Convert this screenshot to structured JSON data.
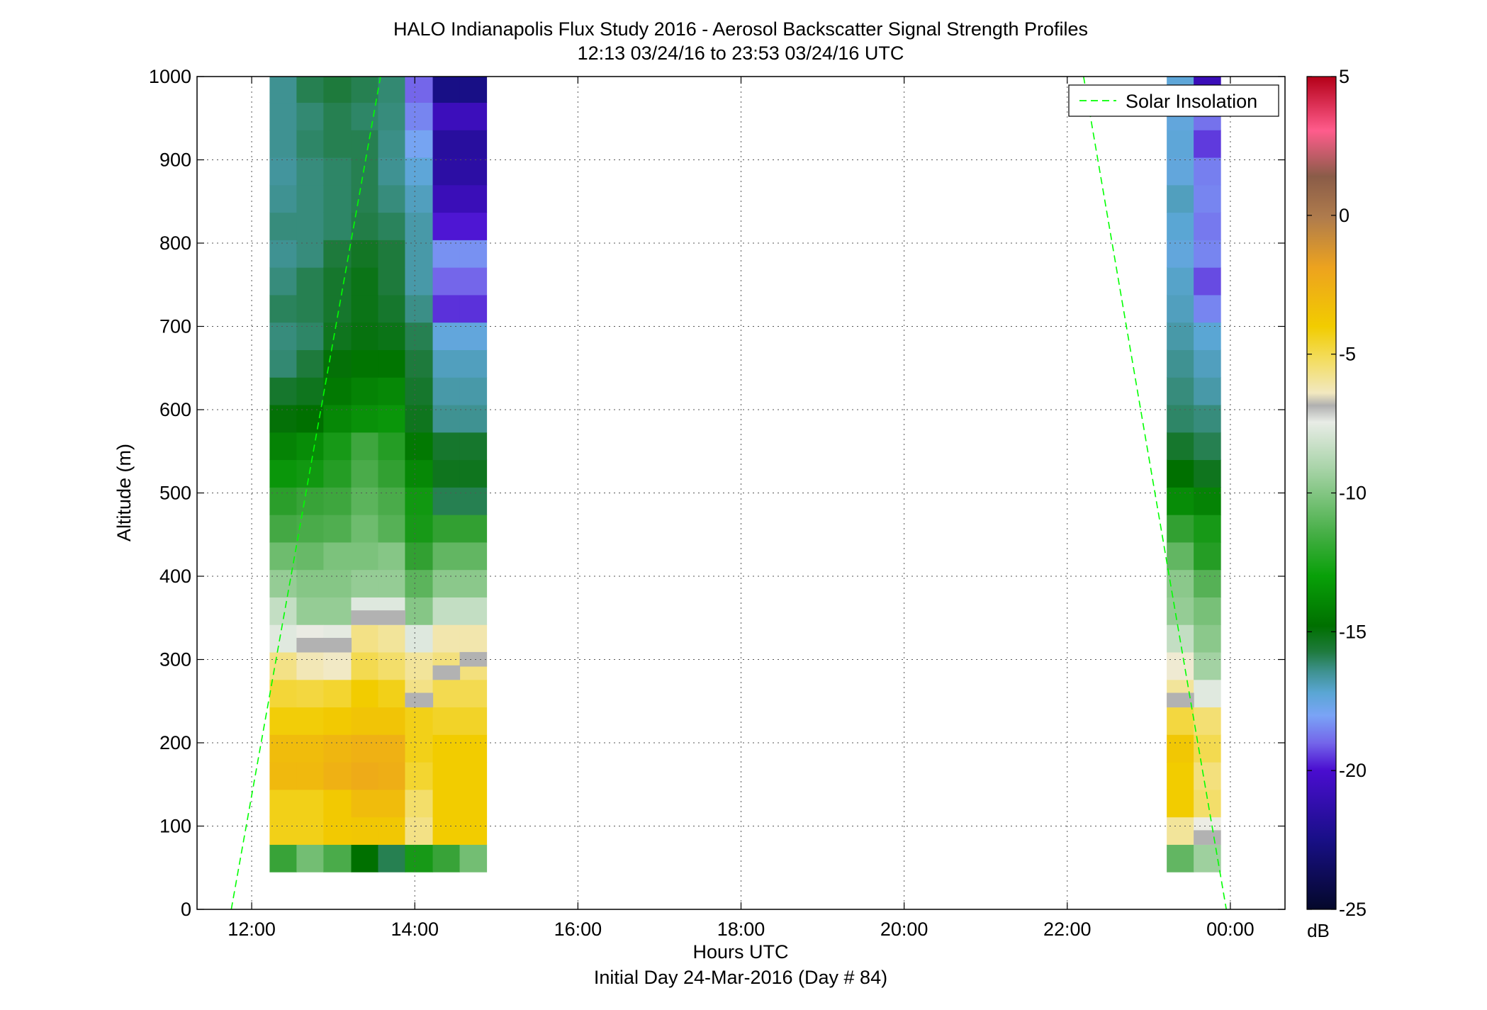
{
  "figure": {
    "title_line1": "HALO Indianapolis Flux Study 2016 - Aerosol Backscatter Signal Strength Profiles",
    "title_line2": "12:13 03/24/16 to 23:53 03/24/16  UTC",
    "xlabel": "Hours UTC",
    "footer": "Initial Day 24-Mar-2016 (Day # 84)",
    "ylabel": "Altitude (m)",
    "legend_label": "Solar Insolation",
    "colorbar_unit": "dB"
  },
  "chart_data": {
    "type": "heatmap",
    "title": "HALO Indianapolis Flux Study 2016 - Aerosol Backscatter Signal Strength Profiles",
    "subtitle": "12:13 03/24/16 to 23:53 03/24/16  UTC",
    "xlabel": "Hours UTC",
    "ylabel": "Altitude (m)",
    "x_unit": "hours UTC (24 = 00:00 next day)",
    "xlim": [
      11.33,
      24.67
    ],
    "ylim": [
      0,
      1000
    ],
    "x_ticks": [
      12,
      14,
      16,
      18,
      20,
      22,
      24
    ],
    "x_tick_labels": [
      "12:00",
      "14:00",
      "16:00",
      "18:00",
      "20:00",
      "22:00",
      "00:00"
    ],
    "y_ticks": [
      0,
      100,
      200,
      300,
      400,
      500,
      600,
      700,
      800,
      900,
      1000
    ],
    "y_tick_labels": [
      "0",
      "100",
      "200",
      "300",
      "400",
      "500",
      "600",
      "700",
      "800",
      "900",
      "1000"
    ],
    "grid": true,
    "colorbar": {
      "unit": "dB",
      "range": [
        -25,
        5
      ],
      "ticks": [
        5,
        0,
        -5,
        -10,
        -15,
        -20,
        -25
      ],
      "tick_labels": [
        "5",
        "0",
        "-5",
        "-10",
        "-15",
        "-20",
        "-25"
      ]
    },
    "altitude_bins_m": [
      45,
      78,
      111,
      144,
      177,
      210,
      243,
      276,
      309,
      342,
      375,
      408,
      441,
      474,
      507,
      540,
      573,
      606,
      639,
      672,
      705,
      738,
      771,
      804,
      837,
      870,
      903,
      936,
      969,
      1002
    ],
    "profiles": [
      {
        "time": "12:13",
        "x_start": 12.22,
        "x_end": 12.55,
        "values_db": [
          -13.5,
          -7.3,
          -7.3,
          -6.3,
          -6.4,
          -7.1,
          -7.7,
          -8.6,
          -10.5,
          -11.0,
          -11.8,
          -12.6,
          -13.3,
          -13.7,
          -14.2,
          -14.6,
          -15.1,
          -15.6,
          -16.3,
          -16.4,
          -16.1,
          -16.4,
          -16.6,
          -16.4,
          -16.6,
          -16.7,
          -16.6,
          -16.6,
          -16.6,
          -16.2
        ]
      },
      {
        "time": "12:33",
        "x_start": 12.55,
        "x_end": 12.88,
        "values_db": [
          -12.5,
          -7.3,
          -7.3,
          -6.3,
          -6.4,
          -7.1,
          -7.8,
          -9.1,
          -10.1,
          -11.8,
          -12.1,
          -12.7,
          -13.2,
          -13.5,
          -14.1,
          -14.4,
          -15.0,
          -15.4,
          -15.8,
          -16.2,
          -16.0,
          -16.0,
          -16.4,
          -16.4,
          -16.4,
          -16.4,
          -16.2,
          -16.3,
          -16.0,
          -16.0
        ]
      },
      {
        "time": "12:53",
        "x_start": 12.88,
        "x_end": 13.22,
        "values_db": [
          -13.2,
          -6.9,
          -6.9,
          -6.0,
          -6.2,
          -6.9,
          -7.6,
          -9.3,
          -10.3,
          -11.8,
          -12.1,
          -12.3,
          -13.1,
          -13.4,
          -13.8,
          -14.0,
          -14.5,
          -14.8,
          -15.1,
          -15.4,
          -15.6,
          -15.6,
          -15.8,
          -16.2,
          -16.2,
          -16.2,
          -16.0,
          -16.0,
          -15.8,
          -15.6
        ]
      },
      {
        "time": "13:13",
        "x_start": 13.22,
        "x_end": 13.55,
        "values_db": [
          -15.0,
          -6.8,
          -6.4,
          -5.8,
          -6.0,
          -6.7,
          -7.0,
          -8.0,
          -8.6,
          -10.6,
          -11.8,
          -12.3,
          -12.6,
          -12.9,
          -13.2,
          -13.4,
          -14.3,
          -14.6,
          -14.9,
          -15.2,
          -15.3,
          -15.3,
          -15.5,
          -15.9,
          -16.0,
          -16.0,
          -16.0,
          -16.2,
          -16.0,
          -15.9
        ]
      },
      {
        "time": "13:33",
        "x_start": 13.55,
        "x_end": 13.88,
        "values_db": [
          -16.0,
          -6.8,
          -6.4,
          -5.9,
          -6.0,
          -6.7,
          -7.3,
          -8.3,
          -8.8,
          -10.6,
          -11.8,
          -12.1,
          -13.0,
          -13.2,
          -13.6,
          -13.8,
          -14.2,
          -14.5,
          -14.9,
          -15.3,
          -15.6,
          -15.8,
          -15.8,
          -16.1,
          -16.4,
          -16.6,
          -16.5,
          -16.4,
          -16.3,
          -16.4
        ]
      },
      {
        "time": "13:53",
        "x_start": 13.88,
        "x_end": 14.22,
        "values_db": [
          -14.0,
          -8.6,
          -8.3,
          -7.6,
          -7.3,
          -7.3,
          -8.6,
          -8.8,
          -10.6,
          -12.1,
          -12.9,
          -13.6,
          -14.0,
          -14.1,
          -14.5,
          -14.8,
          -15.4,
          -15.6,
          -15.8,
          -16.0,
          -16.5,
          -16.8,
          -16.8,
          -16.8,
          -17.0,
          -17.3,
          -17.9,
          -18.5,
          -19.0,
          -17.3
        ]
      },
      {
        "time": "14:13",
        "x_start": 14.22,
        "x_end": 14.55,
        "values_db": [
          -13.5,
          -7.0,
          -7.0,
          -7.0,
          -7.0,
          -7.5,
          -8.0,
          -8.5,
          -9.0,
          -11.0,
          -12.0,
          -12.8,
          -13.6,
          -16.0,
          -15.4,
          -15.6,
          -16.6,
          -16.8,
          -17.0,
          -17.4,
          -19.6,
          -19.0,
          -18.3,
          -19.9,
          -20.8,
          -21.5,
          -21.7,
          -20.7,
          -22.5,
          -21.5
        ]
      },
      {
        "time": "14:33",
        "x_start": 14.55,
        "x_end": 14.88,
        "values_db": [
          -12.5,
          -7.0,
          -7.0,
          -7.0,
          -7.0,
          -7.5,
          -8.0,
          -8.5,
          -9.0,
          -11.0,
          -12.0,
          -12.8,
          -13.6,
          -16.0,
          -15.4,
          -15.6,
          -16.6,
          -16.8,
          -17.0,
          -17.4,
          -19.6,
          -19.0,
          -18.3,
          -19.9,
          -20.8,
          -21.5,
          -21.7,
          -20.7,
          -22.5,
          -21.5
        ]
      },
      {
        "time": "23:13",
        "x_start": 23.22,
        "x_end": 23.55,
        "values_db": [
          -12.8,
          -8.8,
          -7.0,
          -7.0,
          -6.8,
          -7.8,
          -8.8,
          -9.6,
          -11.0,
          -11.8,
          -12.0,
          -12.8,
          -13.6,
          -14.4,
          -15.0,
          -15.6,
          -16.2,
          -16.4,
          -16.6,
          -16.8,
          -17.0,
          -17.1,
          -17.4,
          -17.2,
          -17.0,
          -17.4,
          -17.3,
          -17.4,
          -17.3,
          -17.3
        ]
      },
      {
        "time": "23:33",
        "x_start": 23.55,
        "x_end": 23.88,
        "values_db": [
          -11.6,
          -10.0,
          -8.3,
          -8.5,
          -8.0,
          -8.4,
          -10.5,
          -11.5,
          -12.0,
          -12.4,
          -13.0,
          -13.8,
          -14.0,
          -14.6,
          -15.4,
          -16.0,
          -16.4,
          -16.8,
          -17.0,
          -17.2,
          -18.5,
          -19.3,
          -18.5,
          -18.7,
          -18.5,
          -18.6,
          -19.5,
          -18.8,
          -20.8,
          -20.4
        ]
      }
    ],
    "missing_data_bins": [
      {
        "profile": "12:33",
        "altitude_m": 309
      },
      {
        "profile": "12:53",
        "altitude_m": 309
      },
      {
        "profile": "13:13",
        "altitude_m": 342
      },
      {
        "profile": "13:33",
        "altitude_m": 342
      },
      {
        "profile": "13:53",
        "altitude_m": 243
      },
      {
        "profile": "14:13",
        "altitude_m": 276
      },
      {
        "profile": "14:33",
        "altitude_m": 292
      },
      {
        "profile": "23:13",
        "altitude_m": 243
      },
      {
        "profile": "23:33",
        "altitude_m": 78
      }
    ],
    "series": [
      {
        "name": "Solar Insolation",
        "style": "dashed",
        "color": "#00ff00",
        "segments": [
          {
            "x": [
              11.75,
              13.58
            ],
            "y": [
              0,
              1000
            ]
          },
          {
            "x": [
              22.2,
              23.95
            ],
            "y": [
              1000,
              0
            ]
          }
        ]
      }
    ],
    "legend": {
      "position": "top-right",
      "entries": [
        "Solar Insolation"
      ]
    }
  }
}
